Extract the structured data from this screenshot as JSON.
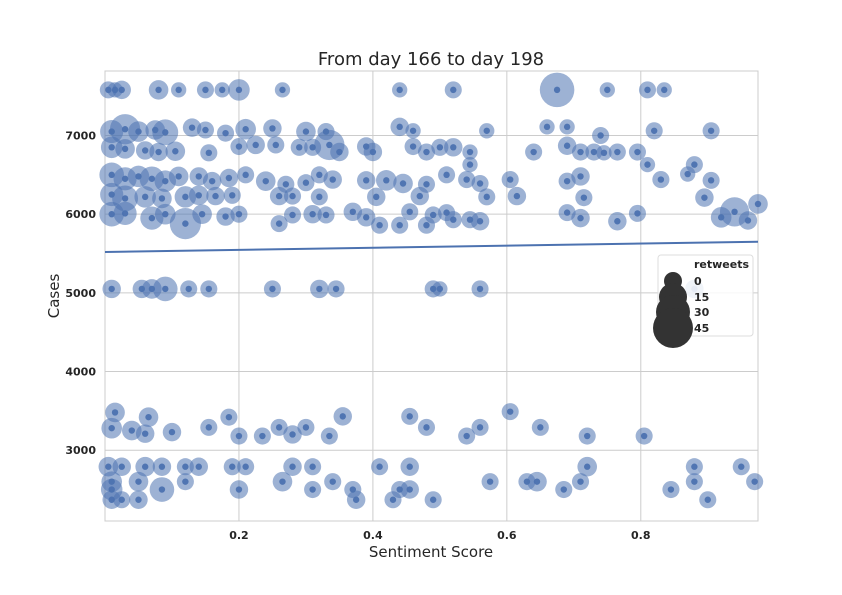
{
  "chart_data": {
    "type": "scatter",
    "title": "From day 166 to day 198",
    "xlabel": "Sentiment Score",
    "ylabel": "Cases",
    "xlim": [
      0.0,
      0.975
    ],
    "ylim": [
      2100,
      7820
    ],
    "x_ticks": [
      0.2,
      0.4,
      0.6,
      0.8
    ],
    "x_tick_labels": [
      "0.2",
      "0.4",
      "0.6",
      "0.8"
    ],
    "y_ticks": [
      3000,
      4000,
      5000,
      6000,
      7000
    ],
    "y_tick_labels": [
      "3000",
      "4000",
      "5000",
      "6000",
      "7000"
    ],
    "grid": true,
    "point_color": "#4c72b0",
    "trend_color": "#4c72b0",
    "trend_line": {
      "x": [
        0.0,
        0.975
      ],
      "y": [
        5520,
        5650
      ]
    },
    "size_legend": {
      "title": "retweets",
      "placement": "right",
      "labels": [
        "0",
        "15",
        "30",
        "45"
      ],
      "values": [
        0,
        15,
        30,
        45
      ]
    },
    "points": [
      {
        "x": 0.005,
        "y": 7580,
        "r": 2
      },
      {
        "x": 0.015,
        "y": 7580,
        "r": 1
      },
      {
        "x": 0.025,
        "y": 7580,
        "r": 3
      },
      {
        "x": 0.08,
        "y": 7580,
        "r": 4
      },
      {
        "x": 0.11,
        "y": 7580,
        "r": 1
      },
      {
        "x": 0.15,
        "y": 7580,
        "r": 2
      },
      {
        "x": 0.175,
        "y": 7580,
        "r": 1
      },
      {
        "x": 0.2,
        "y": 7580,
        "r": 6
      },
      {
        "x": 0.265,
        "y": 7580,
        "r": 1
      },
      {
        "x": 0.44,
        "y": 7580,
        "r": 1
      },
      {
        "x": 0.52,
        "y": 7580,
        "r": 2
      },
      {
        "x": 0.675,
        "y": 7580,
        "r": 30
      },
      {
        "x": 0.75,
        "y": 7580,
        "r": 1
      },
      {
        "x": 0.81,
        "y": 7580,
        "r": 2
      },
      {
        "x": 0.835,
        "y": 7580,
        "r": 1
      },
      {
        "x": 0.01,
        "y": 7050,
        "r": 8
      },
      {
        "x": 0.03,
        "y": 7080,
        "r": 20
      },
      {
        "x": 0.05,
        "y": 7050,
        "r": 5
      },
      {
        "x": 0.075,
        "y": 7070,
        "r": 4
      },
      {
        "x": 0.09,
        "y": 7040,
        "r": 12
      },
      {
        "x": 0.13,
        "y": 7100,
        "r": 3
      },
      {
        "x": 0.15,
        "y": 7070,
        "r": 2
      },
      {
        "x": 0.18,
        "y": 7030,
        "r": 2
      },
      {
        "x": 0.21,
        "y": 7080,
        "r": 5
      },
      {
        "x": 0.25,
        "y": 7090,
        "r": 3
      },
      {
        "x": 0.3,
        "y": 7050,
        "r": 4
      },
      {
        "x": 0.33,
        "y": 7050,
        "r": 2
      },
      {
        "x": 0.44,
        "y": 7110,
        "r": 3
      },
      {
        "x": 0.46,
        "y": 7060,
        "r": 1
      },
      {
        "x": 0.57,
        "y": 7060,
        "r": 1
      },
      {
        "x": 0.66,
        "y": 7110,
        "r": 1
      },
      {
        "x": 0.69,
        "y": 7110,
        "r": 1
      },
      {
        "x": 0.74,
        "y": 7000,
        "r": 2
      },
      {
        "x": 0.82,
        "y": 7060,
        "r": 2
      },
      {
        "x": 0.905,
        "y": 7060,
        "r": 2
      },
      {
        "x": 0.01,
        "y": 6850,
        "r": 6
      },
      {
        "x": 0.03,
        "y": 6830,
        "r": 4
      },
      {
        "x": 0.06,
        "y": 6810,
        "r": 3
      },
      {
        "x": 0.08,
        "y": 6790,
        "r": 3
      },
      {
        "x": 0.105,
        "y": 6800,
        "r": 4
      },
      {
        "x": 0.155,
        "y": 6780,
        "r": 2
      },
      {
        "x": 0.2,
        "y": 6860,
        "r": 2
      },
      {
        "x": 0.225,
        "y": 6880,
        "r": 3
      },
      {
        "x": 0.255,
        "y": 6880,
        "r": 2
      },
      {
        "x": 0.29,
        "y": 6850,
        "r": 2
      },
      {
        "x": 0.31,
        "y": 6850,
        "r": 2
      },
      {
        "x": 0.335,
        "y": 6880,
        "r": 20
      },
      {
        "x": 0.35,
        "y": 6790,
        "r": 3
      },
      {
        "x": 0.39,
        "y": 6860,
        "r": 3
      },
      {
        "x": 0.4,
        "y": 6790,
        "r": 3
      },
      {
        "x": 0.46,
        "y": 6860,
        "r": 2
      },
      {
        "x": 0.48,
        "y": 6790,
        "r": 2
      },
      {
        "x": 0.5,
        "y": 6850,
        "r": 2
      },
      {
        "x": 0.52,
        "y": 6850,
        "r": 3
      },
      {
        "x": 0.545,
        "y": 6790,
        "r": 1
      },
      {
        "x": 0.64,
        "y": 6790,
        "r": 2
      },
      {
        "x": 0.69,
        "y": 6870,
        "r": 3
      },
      {
        "x": 0.71,
        "y": 6790,
        "r": 2
      },
      {
        "x": 0.73,
        "y": 6790,
        "r": 2
      },
      {
        "x": 0.745,
        "y": 6780,
        "r": 1
      },
      {
        "x": 0.765,
        "y": 6790,
        "r": 2
      },
      {
        "x": 0.795,
        "y": 6790,
        "r": 2
      },
      {
        "x": 0.88,
        "y": 6630,
        "r": 2
      },
      {
        "x": 0.81,
        "y": 6630,
        "r": 1
      },
      {
        "x": 0.545,
        "y": 6630,
        "r": 1
      },
      {
        "x": 0.01,
        "y": 6500,
        "r": 10
      },
      {
        "x": 0.03,
        "y": 6450,
        "r": 8
      },
      {
        "x": 0.05,
        "y": 6480,
        "r": 6
      },
      {
        "x": 0.07,
        "y": 6450,
        "r": 10
      },
      {
        "x": 0.09,
        "y": 6420,
        "r": 6
      },
      {
        "x": 0.11,
        "y": 6480,
        "r": 4
      },
      {
        "x": 0.14,
        "y": 6480,
        "r": 3
      },
      {
        "x": 0.16,
        "y": 6420,
        "r": 3
      },
      {
        "x": 0.185,
        "y": 6460,
        "r": 3
      },
      {
        "x": 0.21,
        "y": 6500,
        "r": 2
      },
      {
        "x": 0.24,
        "y": 6420,
        "r": 4
      },
      {
        "x": 0.27,
        "y": 6380,
        "r": 2
      },
      {
        "x": 0.3,
        "y": 6400,
        "r": 2
      },
      {
        "x": 0.32,
        "y": 6500,
        "r": 2
      },
      {
        "x": 0.34,
        "y": 6440,
        "r": 3
      },
      {
        "x": 0.39,
        "y": 6430,
        "r": 3
      },
      {
        "x": 0.42,
        "y": 6430,
        "r": 5
      },
      {
        "x": 0.445,
        "y": 6390,
        "r": 4
      },
      {
        "x": 0.48,
        "y": 6380,
        "r": 2
      },
      {
        "x": 0.51,
        "y": 6500,
        "r": 2
      },
      {
        "x": 0.54,
        "y": 6440,
        "r": 2
      },
      {
        "x": 0.56,
        "y": 6390,
        "r": 2
      },
      {
        "x": 0.605,
        "y": 6440,
        "r": 2
      },
      {
        "x": 0.69,
        "y": 6420,
        "r": 2
      },
      {
        "x": 0.71,
        "y": 6480,
        "r": 3
      },
      {
        "x": 0.83,
        "y": 6440,
        "r": 2
      },
      {
        "x": 0.87,
        "y": 6510,
        "r": 1
      },
      {
        "x": 0.905,
        "y": 6430,
        "r": 2
      },
      {
        "x": 0.01,
        "y": 6250,
        "r": 8
      },
      {
        "x": 0.03,
        "y": 6200,
        "r": 12
      },
      {
        "x": 0.06,
        "y": 6220,
        "r": 6
      },
      {
        "x": 0.085,
        "y": 6200,
        "r": 4
      },
      {
        "x": 0.12,
        "y": 6220,
        "r": 6
      },
      {
        "x": 0.14,
        "y": 6240,
        "r": 4
      },
      {
        "x": 0.165,
        "y": 6230,
        "r": 3
      },
      {
        "x": 0.19,
        "y": 6240,
        "r": 2
      },
      {
        "x": 0.26,
        "y": 6230,
        "r": 3
      },
      {
        "x": 0.28,
        "y": 6230,
        "r": 2
      },
      {
        "x": 0.32,
        "y": 6220,
        "r": 2
      },
      {
        "x": 0.405,
        "y": 6220,
        "r": 3
      },
      {
        "x": 0.47,
        "y": 6230,
        "r": 3
      },
      {
        "x": 0.57,
        "y": 6220,
        "r": 2
      },
      {
        "x": 0.615,
        "y": 6230,
        "r": 3
      },
      {
        "x": 0.715,
        "y": 6210,
        "r": 2
      },
      {
        "x": 0.895,
        "y": 6210,
        "r": 3
      },
      {
        "x": 0.975,
        "y": 6130,
        "r": 4
      },
      {
        "x": 0.01,
        "y": 6000,
        "r": 10
      },
      {
        "x": 0.03,
        "y": 6010,
        "r": 8
      },
      {
        "x": 0.07,
        "y": 5950,
        "r": 8
      },
      {
        "x": 0.09,
        "y": 6000,
        "r": 5
      },
      {
        "x": 0.12,
        "y": 5880,
        "r": 22
      },
      {
        "x": 0.145,
        "y": 6000,
        "r": 4
      },
      {
        "x": 0.18,
        "y": 5970,
        "r": 3
      },
      {
        "x": 0.2,
        "y": 6000,
        "r": 2
      },
      {
        "x": 0.26,
        "y": 5880,
        "r": 2
      },
      {
        "x": 0.28,
        "y": 5990,
        "r": 2
      },
      {
        "x": 0.31,
        "y": 6000,
        "r": 3
      },
      {
        "x": 0.33,
        "y": 5990,
        "r": 2
      },
      {
        "x": 0.37,
        "y": 6030,
        "r": 3
      },
      {
        "x": 0.39,
        "y": 5960,
        "r": 3
      },
      {
        "x": 0.41,
        "y": 5860,
        "r": 2
      },
      {
        "x": 0.44,
        "y": 5860,
        "r": 2
      },
      {
        "x": 0.455,
        "y": 6030,
        "r": 2
      },
      {
        "x": 0.49,
        "y": 5990,
        "r": 2
      },
      {
        "x": 0.51,
        "y": 6020,
        "r": 2
      },
      {
        "x": 0.52,
        "y": 5930,
        "r": 2
      },
      {
        "x": 0.545,
        "y": 5930,
        "r": 2
      },
      {
        "x": 0.56,
        "y": 5910,
        "r": 3
      },
      {
        "x": 0.69,
        "y": 6020,
        "r": 2
      },
      {
        "x": 0.71,
        "y": 5950,
        "r": 3
      },
      {
        "x": 0.765,
        "y": 5910,
        "r": 3
      },
      {
        "x": 0.795,
        "y": 6010,
        "r": 2
      },
      {
        "x": 0.92,
        "y": 5960,
        "r": 5
      },
      {
        "x": 0.94,
        "y": 6030,
        "r": 18
      },
      {
        "x": 0.96,
        "y": 5920,
        "r": 3
      },
      {
        "x": 0.48,
        "y": 5860,
        "r": 2
      },
      {
        "x": 0.01,
        "y": 5050,
        "r": 3
      },
      {
        "x": 0.055,
        "y": 5050,
        "r": 3
      },
      {
        "x": 0.07,
        "y": 5050,
        "r": 4
      },
      {
        "x": 0.09,
        "y": 5050,
        "r": 10
      },
      {
        "x": 0.125,
        "y": 5050,
        "r": 2
      },
      {
        "x": 0.155,
        "y": 5050,
        "r": 2
      },
      {
        "x": 0.25,
        "y": 5050,
        "r": 2
      },
      {
        "x": 0.32,
        "y": 5050,
        "r": 3
      },
      {
        "x": 0.345,
        "y": 5050,
        "r": 2
      },
      {
        "x": 0.49,
        "y": 5050,
        "r": 2
      },
      {
        "x": 0.5,
        "y": 5050,
        "r": 1
      },
      {
        "x": 0.56,
        "y": 5050,
        "r": 2
      },
      {
        "x": 0.88,
        "y": 5050,
        "r": 3
      },
      {
        "x": 0.015,
        "y": 3480,
        "r": 4
      },
      {
        "x": 0.065,
        "y": 3420,
        "r": 4
      },
      {
        "x": 0.185,
        "y": 3420,
        "r": 2
      },
      {
        "x": 0.355,
        "y": 3430,
        "r": 3
      },
      {
        "x": 0.455,
        "y": 3430,
        "r": 2
      },
      {
        "x": 0.605,
        "y": 3490,
        "r": 2
      },
      {
        "x": 0.01,
        "y": 3280,
        "r": 5
      },
      {
        "x": 0.04,
        "y": 3250,
        "r": 4
      },
      {
        "x": 0.06,
        "y": 3210,
        "r": 3
      },
      {
        "x": 0.1,
        "y": 3230,
        "r": 3
      },
      {
        "x": 0.155,
        "y": 3290,
        "r": 2
      },
      {
        "x": 0.2,
        "y": 3180,
        "r": 2
      },
      {
        "x": 0.235,
        "y": 3180,
        "r": 2
      },
      {
        "x": 0.26,
        "y": 3290,
        "r": 2
      },
      {
        "x": 0.28,
        "y": 3200,
        "r": 3
      },
      {
        "x": 0.3,
        "y": 3290,
        "r": 2
      },
      {
        "x": 0.335,
        "y": 3180,
        "r": 2
      },
      {
        "x": 0.48,
        "y": 3290,
        "r": 2
      },
      {
        "x": 0.54,
        "y": 3180,
        "r": 2
      },
      {
        "x": 0.56,
        "y": 3290,
        "r": 2
      },
      {
        "x": 0.65,
        "y": 3290,
        "r": 2
      },
      {
        "x": 0.72,
        "y": 3180,
        "r": 2
      },
      {
        "x": 0.805,
        "y": 3180,
        "r": 2
      },
      {
        "x": 0.005,
        "y": 2790,
        "r": 4
      },
      {
        "x": 0.025,
        "y": 2790,
        "r": 3
      },
      {
        "x": 0.06,
        "y": 2790,
        "r": 4
      },
      {
        "x": 0.085,
        "y": 2790,
        "r": 3
      },
      {
        "x": 0.12,
        "y": 2790,
        "r": 2
      },
      {
        "x": 0.14,
        "y": 2790,
        "r": 3
      },
      {
        "x": 0.19,
        "y": 2790,
        "r": 2
      },
      {
        "x": 0.21,
        "y": 2790,
        "r": 2
      },
      {
        "x": 0.28,
        "y": 2790,
        "r": 3
      },
      {
        "x": 0.31,
        "y": 2790,
        "r": 2
      },
      {
        "x": 0.41,
        "y": 2790,
        "r": 2
      },
      {
        "x": 0.455,
        "y": 2790,
        "r": 3
      },
      {
        "x": 0.72,
        "y": 2790,
        "r": 4
      },
      {
        "x": 0.88,
        "y": 2790,
        "r": 2
      },
      {
        "x": 0.95,
        "y": 2790,
        "r": 2
      },
      {
        "x": 0.01,
        "y": 2600,
        "r": 5
      },
      {
        "x": 0.05,
        "y": 2600,
        "r": 4
      },
      {
        "x": 0.12,
        "y": 2600,
        "r": 2
      },
      {
        "x": 0.265,
        "y": 2600,
        "r": 4
      },
      {
        "x": 0.34,
        "y": 2600,
        "r": 2
      },
      {
        "x": 0.575,
        "y": 2600,
        "r": 2
      },
      {
        "x": 0.63,
        "y": 2600,
        "r": 2
      },
      {
        "x": 0.645,
        "y": 2600,
        "r": 4
      },
      {
        "x": 0.71,
        "y": 2600,
        "r": 2
      },
      {
        "x": 0.88,
        "y": 2600,
        "r": 2
      },
      {
        "x": 0.97,
        "y": 2600,
        "r": 2
      },
      {
        "x": 0.01,
        "y": 2500,
        "r": 6
      },
      {
        "x": 0.085,
        "y": 2500,
        "r": 10
      },
      {
        "x": 0.2,
        "y": 2500,
        "r": 3
      },
      {
        "x": 0.31,
        "y": 2500,
        "r": 2
      },
      {
        "x": 0.37,
        "y": 2500,
        "r": 2
      },
      {
        "x": 0.44,
        "y": 2500,
        "r": 2
      },
      {
        "x": 0.455,
        "y": 2500,
        "r": 3
      },
      {
        "x": 0.685,
        "y": 2500,
        "r": 2
      },
      {
        "x": 0.845,
        "y": 2500,
        "r": 2
      },
      {
        "x": 0.01,
        "y": 2370,
        "r": 3
      },
      {
        "x": 0.025,
        "y": 2370,
        "r": 2
      },
      {
        "x": 0.05,
        "y": 2370,
        "r": 3
      },
      {
        "x": 0.375,
        "y": 2370,
        "r": 3
      },
      {
        "x": 0.43,
        "y": 2370,
        "r": 2
      },
      {
        "x": 0.49,
        "y": 2370,
        "r": 2
      },
      {
        "x": 0.9,
        "y": 2370,
        "r": 2
      }
    ]
  }
}
